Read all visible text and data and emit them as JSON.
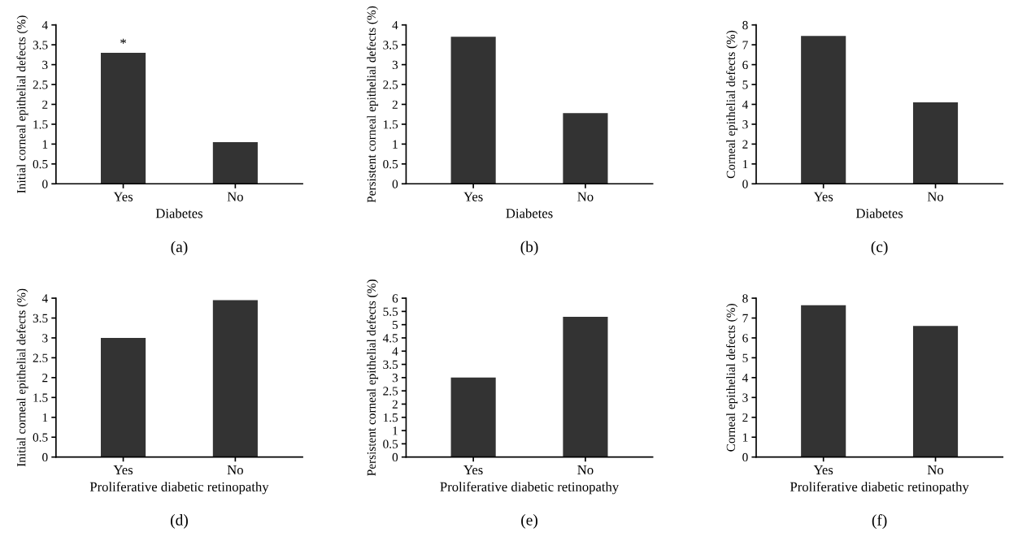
{
  "chart_data": [
    {
      "type": "bar",
      "categories": [
        "Yes",
        "No"
      ],
      "values": [
        3.3,
        1.05
      ],
      "color": "#333333",
      "xlabel": "Diabetes",
      "ylabel": "Initial corneal epithelial defects (%)",
      "ylim": [
        0,
        4
      ],
      "yticks": [
        0,
        0.5,
        1,
        1.5,
        2,
        2.5,
        3,
        3.5,
        4
      ],
      "annotations": [
        {
          "text": "*",
          "x": "Yes",
          "y": 3.3
        },
        "(a)"
      ]
    },
    {
      "type": "bar",
      "categories": [
        "Yes",
        "No"
      ],
      "values": [
        3.7,
        1.78
      ],
      "color": "#333333",
      "xlabel": "Diabetes",
      "ylabel": "Persistent corneal epithelial defects (%)",
      "ylim": [
        0,
        4
      ],
      "yticks": [
        0,
        0.5,
        1,
        1.5,
        2,
        2.5,
        3,
        3.5,
        4
      ],
      "annotations": [
        "(b)"
      ]
    },
    {
      "type": "bar",
      "categories": [
        "Yes",
        "No"
      ],
      "values": [
        7.45,
        4.1
      ],
      "color": "#333333",
      "xlabel": "Diabetes",
      "ylabel": "Corneal epithelial defects (%)",
      "ylim": [
        0,
        8
      ],
      "yticks": [
        0,
        1,
        2,
        3,
        4,
        5,
        6,
        7,
        8
      ],
      "annotations": [
        "(c)"
      ]
    },
    {
      "type": "bar",
      "categories": [
        "Yes",
        "No"
      ],
      "values": [
        3.0,
        3.95
      ],
      "color": "#333333",
      "xlabel": "Proliferative diabetic retinopathy",
      "ylabel": "Initial corneal epithelial defects (%)",
      "ylim": [
        0,
        4
      ],
      "yticks": [
        0,
        0.5,
        1,
        1.5,
        2,
        2.5,
        3,
        3.5,
        4
      ],
      "annotations": [
        "(d)"
      ]
    },
    {
      "type": "bar",
      "categories": [
        "Yes",
        "No"
      ],
      "values": [
        3.0,
        5.3
      ],
      "color": "#333333",
      "xlabel": "Proliferative diabetic retinopathy",
      "ylabel": "Persistent corneal epithelial defects (%)",
      "ylim": [
        0,
        6
      ],
      "yticks": [
        0,
        0.5,
        1,
        1.5,
        2,
        2.5,
        3,
        3.5,
        4,
        4.5,
        5,
        5.5,
        6
      ],
      "annotations": [
        "(e)"
      ]
    },
    {
      "type": "bar",
      "categories": [
        "Yes",
        "No"
      ],
      "values": [
        7.65,
        6.6
      ],
      "color": "#333333",
      "xlabel": "Proliferative diabetic retinopathy",
      "ylabel": "Corneal epithelial defects (%)",
      "ylim": [
        0,
        8
      ],
      "yticks": [
        0,
        1,
        2,
        3,
        4,
        5,
        6,
        7,
        8
      ],
      "annotations": [
        "(f)"
      ]
    }
  ]
}
